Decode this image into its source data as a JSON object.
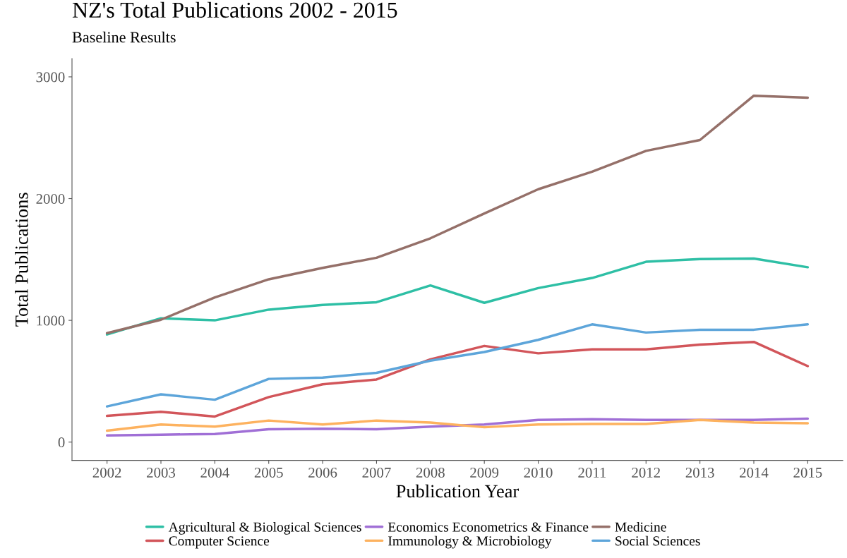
{
  "chart_data": {
    "type": "line",
    "title": "NZ's Total Publications 2002 - 2015",
    "subtitle": "Baseline Results",
    "xlabel": "Publication Year",
    "ylabel": "Total Publications",
    "x": [
      2002,
      2003,
      2004,
      2005,
      2006,
      2007,
      2008,
      2009,
      2010,
      2011,
      2012,
      2013,
      2014,
      2015
    ],
    "xlim": [
      2001.35,
      2015.65
    ],
    "xticks": [
      2002,
      2003,
      2004,
      2005,
      2006,
      2007,
      2008,
      2009,
      2010,
      2011,
      2012,
      2013,
      2014,
      2015
    ],
    "ylim": [
      -150,
      3150
    ],
    "yticks": [
      0,
      1000,
      2000,
      3000
    ],
    "grid": false,
    "legend": "bottom",
    "line_style": "solid",
    "marker": "none",
    "series": [
      {
        "name": "Agricultural & Biological Sciences",
        "color": "#2ebfa5",
        "values": [
          884,
          1017,
          1000,
          1088,
          1127,
          1149,
          1287,
          1144,
          1265,
          1348,
          1481,
          1503,
          1508,
          1436
        ]
      },
      {
        "name": "Economics Econometrics & Finance",
        "color": "#a06fd6",
        "values": [
          55,
          61,
          66,
          105,
          110,
          105,
          127,
          144,
          182,
          188,
          182,
          182,
          182,
          193
        ]
      },
      {
        "name": "Medicine",
        "color": "#957069",
        "values": [
          895,
          1005,
          1188,
          1337,
          1431,
          1514,
          1674,
          1878,
          2077,
          2221,
          2392,
          2481,
          2845,
          2829
        ]
      },
      {
        "name": "Computer Science",
        "color": "#d2555a",
        "values": [
          215,
          249,
          210,
          370,
          475,
          514,
          680,
          790,
          729,
          762,
          762,
          801,
          823,
          624
        ]
      },
      {
        "name": "Immunology & Microbiology",
        "color": "#fdb25f",
        "values": [
          94,
          144,
          127,
          177,
          144,
          177,
          160,
          122,
          144,
          149,
          149,
          182,
          160,
          155
        ]
      },
      {
        "name": "Social Sciences",
        "color": "#5da5da",
        "values": [
          293,
          392,
          348,
          519,
          530,
          569,
          669,
          740,
          840,
          967,
          900,
          923,
          923,
          967
        ]
      }
    ]
  }
}
